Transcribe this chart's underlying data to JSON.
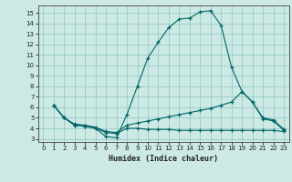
{
  "xlabel": "Humidex (Indice chaleur)",
  "bg_color": "#cce9e4",
  "grid_color": "#99cccc",
  "line_color": "#006666",
  "xlim": [
    -0.5,
    23.5
  ],
  "ylim": [
    2.7,
    15.7
  ],
  "yticks": [
    3,
    4,
    5,
    6,
    7,
    8,
    9,
    10,
    11,
    12,
    13,
    14,
    15
  ],
  "xticks": [
    0,
    1,
    2,
    3,
    4,
    5,
    6,
    7,
    8,
    9,
    10,
    11,
    12,
    13,
    14,
    15,
    16,
    17,
    18,
    19,
    20,
    21,
    22,
    23
  ],
  "line1_x": [
    1,
    2,
    3,
    4,
    5,
    6,
    7,
    8,
    9,
    10,
    11,
    12,
    13,
    14,
    15,
    16,
    17,
    18,
    19,
    20,
    21,
    22,
    23
  ],
  "line1_y": [
    6.2,
    5.0,
    4.3,
    4.2,
    4.0,
    3.2,
    3.1,
    5.3,
    8.0,
    10.7,
    12.2,
    13.6,
    14.4,
    14.5,
    15.1,
    15.2,
    13.8,
    9.8,
    7.5,
    6.5,
    4.9,
    4.7,
    3.8
  ],
  "line2_x": [
    1,
    2,
    3,
    4,
    5,
    6,
    7,
    8,
    9,
    10,
    11,
    12,
    13,
    14,
    15,
    16,
    17,
    18,
    19,
    20,
    21,
    22,
    23
  ],
  "line2_y": [
    6.2,
    5.0,
    4.4,
    4.3,
    4.1,
    3.7,
    3.6,
    4.3,
    4.5,
    4.7,
    4.9,
    5.1,
    5.3,
    5.5,
    5.7,
    5.9,
    6.2,
    6.5,
    7.5,
    6.5,
    5.0,
    4.8,
    3.9
  ],
  "line3_x": [
    1,
    2,
    3,
    4,
    5,
    6,
    7,
    8,
    9,
    10,
    11,
    12,
    13,
    14,
    15,
    16,
    17,
    18,
    19,
    20,
    21,
    22,
    23
  ],
  "line3_y": [
    6.2,
    5.0,
    4.3,
    4.2,
    4.0,
    3.6,
    3.5,
    4.0,
    4.0,
    3.9,
    3.9,
    3.9,
    3.8,
    3.8,
    3.8,
    3.8,
    3.8,
    3.8,
    3.8,
    3.8,
    3.8,
    3.8,
    3.7
  ]
}
